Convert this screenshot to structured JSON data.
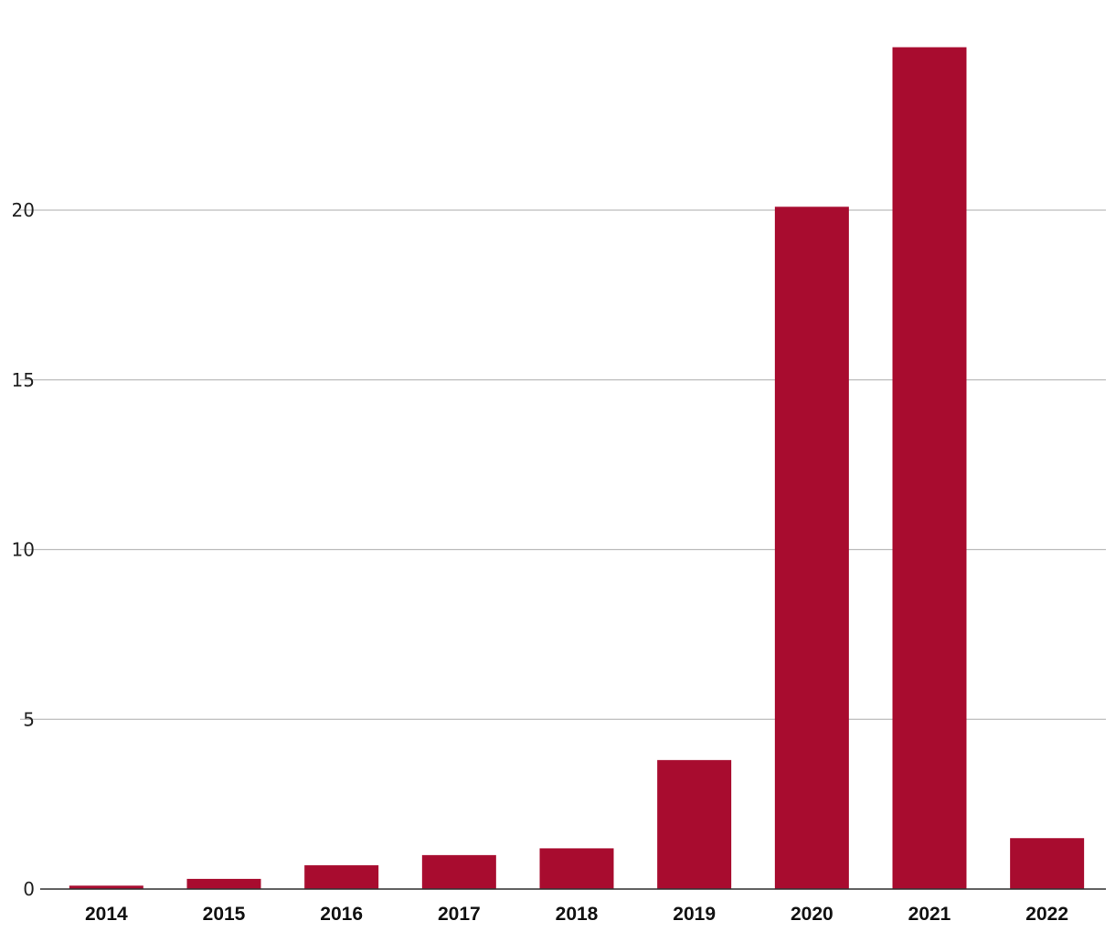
{
  "chart_data": {
    "type": "bar",
    "title": "",
    "xlabel": "",
    "ylabel": "",
    "categories": [
      "2014",
      "2015",
      "2016",
      "2017",
      "2018",
      "2019",
      "2020",
      "2021",
      "2022"
    ],
    "values": [
      0.1,
      0.3,
      0.7,
      1.0,
      1.2,
      3.8,
      20.1,
      24.8,
      1.5
    ],
    "ylim": [
      0,
      25
    ],
    "yticks": [
      "0",
      "5",
      "10",
      "15",
      "20"
    ],
    "grid": true,
    "legend": "none",
    "colors": {
      "bar": "#a80c2f",
      "grid": "#bdbdbd",
      "axis": "#333333"
    }
  }
}
